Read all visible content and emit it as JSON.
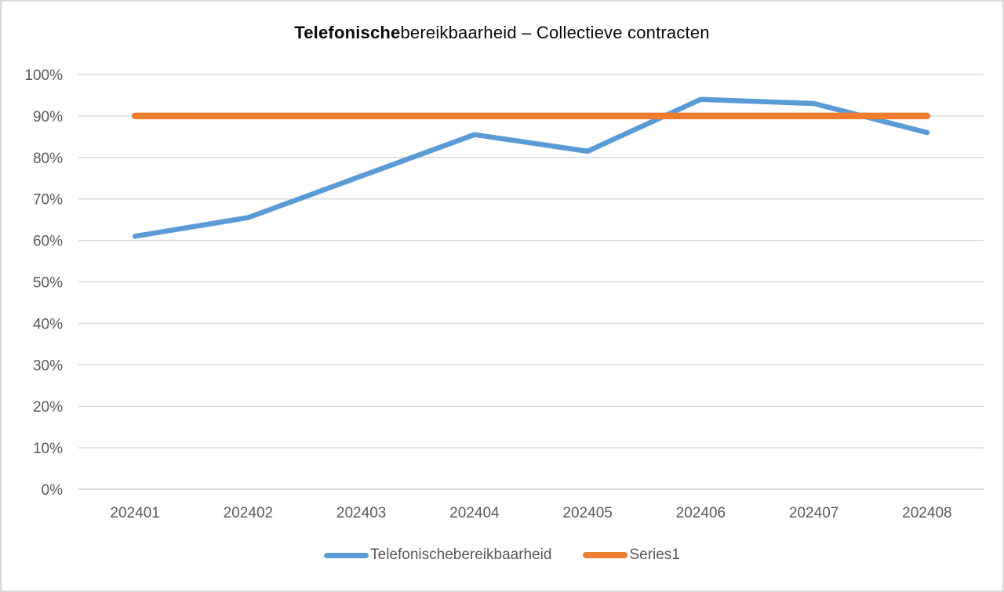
{
  "chart_data": {
    "type": "line",
    "title": "Telefonischebereikbaarheid – Collectieve contracten",
    "title_bold": "Telefonische",
    "title_regular": "bereikbaarheid – Collectieve contracten",
    "categories": [
      "202401",
      "202402",
      "202403",
      "202404",
      "202405",
      "202406",
      "202407",
      "202408"
    ],
    "series": [
      {
        "name": "Telefonischebereikbaarheid",
        "color": "#5B9BD5",
        "stroke_width": 6.5,
        "values": [
          61,
          65.5,
          75.5,
          85.5,
          81.5,
          94,
          93,
          86
        ]
      },
      {
        "name": "Series1",
        "color": "#ED7D31",
        "stroke_width": 8.5,
        "values": [
          90,
          90,
          90,
          90,
          90,
          90,
          90,
          90
        ]
      }
    ],
    "y_axis": {
      "min": 0,
      "max": 100,
      "step": 10,
      "tick_labels": [
        "0%",
        "10%",
        "20%",
        "30%",
        "40%",
        "50%",
        "60%",
        "70%",
        "80%",
        "90%",
        "100%"
      ]
    },
    "xlabel": "",
    "ylabel": "",
    "ylim": [
      0,
      100
    ],
    "grid": true,
    "legend": {
      "position": "bottom",
      "entries": [
        "Telefonischebereikbaarheid",
        "Series1"
      ]
    }
  },
  "colors": {
    "grid": "#D9D9D9",
    "axis_line": "#C6C6C6",
    "axis_text": "#595959",
    "title_text": "#0a0a0a",
    "legend_text": "#595959",
    "background": "#FFFFFF",
    "frame_border": "#D9D9D9"
  }
}
